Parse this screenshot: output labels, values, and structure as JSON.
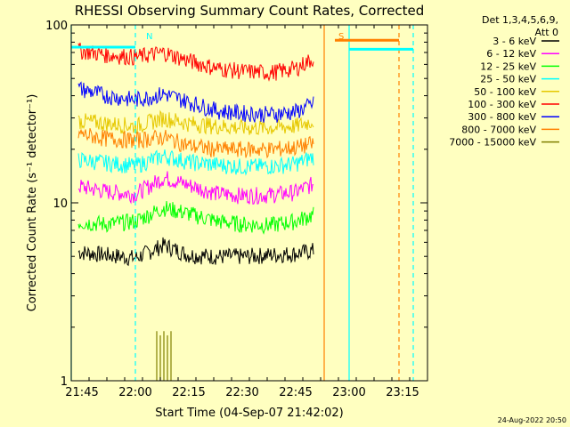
{
  "chart_data": {
    "type": "line",
    "title": "RHESSI Observing Summary Count Rates, Corrected",
    "xlabel": "Start Time (04-Sep-07 21:42:02)",
    "ylabel": "Corrected Count Rate (s⁻¹ detector⁻¹)",
    "y_scale": "log",
    "ylim": [
      1,
      100
    ],
    "xlim": [
      "21:42",
      "23:22"
    ],
    "x_ticks": [
      "21:45",
      "22:00",
      "22:15",
      "22:30",
      "22:45",
      "23:00",
      "23:15"
    ],
    "y_ticks": [
      "1",
      "10",
      "100"
    ],
    "legend_title": [
      "Det 1,3,4,5,6,9,",
      "Att 0"
    ],
    "legend_position": "right",
    "timestamp": "24-Aug-2022 20:50",
    "series": [
      {
        "name": "3 - 6 keV",
        "color": "#000000",
        "x": [
          "21:44",
          "21:52",
          "22:00",
          "22:08",
          "22:15",
          "22:23",
          "22:30",
          "22:38",
          "22:45",
          "22:50"
        ],
        "values": [
          5.3,
          5.1,
          4.9,
          5.8,
          5.1,
          5.0,
          5.0,
          5.1,
          5.2,
          5.4
        ]
      },
      {
        "name": "6 - 12 keV",
        "color": "#ff00ff",
        "x": [
          "21:44",
          "21:52",
          "22:00",
          "22:08",
          "22:15",
          "22:23",
          "22:30",
          "22:38",
          "22:45",
          "22:50"
        ],
        "values": [
          12.4,
          11.6,
          11.2,
          13.9,
          12.6,
          11.3,
          11.0,
          11.1,
          11.5,
          12.8
        ]
      },
      {
        "name": "12 - 25 keV",
        "color": "#00ff00",
        "x": [
          "21:44",
          "21:52",
          "22:00",
          "22:08",
          "22:15",
          "22:23",
          "22:30",
          "22:38",
          "22:45",
          "22:50"
        ],
        "values": [
          7.8,
          7.6,
          7.9,
          9.4,
          8.7,
          7.9,
          7.6,
          7.5,
          7.9,
          8.6
        ]
      },
      {
        "name": "25 - 50 keV",
        "color": "#00ffff",
        "x": [
          "21:44",
          "21:52",
          "22:00",
          "22:08",
          "22:15",
          "22:23",
          "22:30",
          "22:38",
          "22:45",
          "22:50"
        ],
        "values": [
          17.5,
          16.8,
          16.2,
          18.4,
          17.0,
          16.4,
          16.0,
          16.1,
          16.6,
          18.2
        ]
      },
      {
        "name": "50 - 100 keV",
        "color": "#e6c800",
        "x": [
          "21:44",
          "21:52",
          "22:00",
          "22:08",
          "22:15",
          "22:23",
          "22:30",
          "22:38",
          "22:45",
          "22:50"
        ],
        "values": [
          29,
          28,
          27,
          30,
          28,
          27,
          26.5,
          26.5,
          27,
          29
        ]
      },
      {
        "name": "100 - 300 keV",
        "color": "#ff0000",
        "x": [
          "21:44",
          "21:52",
          "22:00",
          "22:08",
          "22:15",
          "22:23",
          "22:30",
          "22:38",
          "22:45",
          "22:50"
        ],
        "values": [
          72,
          68,
          66,
          70,
          63,
          57,
          55,
          54,
          57,
          65
        ]
      },
      {
        "name": "300 - 800 keV",
        "color": "#0000ff",
        "x": [
          "21:44",
          "21:52",
          "22:00",
          "22:08",
          "22:15",
          "22:23",
          "22:30",
          "22:38",
          "22:45",
          "22:50"
        ],
        "values": [
          44,
          40,
          38,
          41,
          37,
          33,
          32,
          31.5,
          32.5,
          36
        ]
      },
      {
        "name": "800 - 7000 keV",
        "color": "#ff8000",
        "x": [
          "21:44",
          "21:52",
          "22:00",
          "22:08",
          "22:15",
          "22:23",
          "22:30",
          "22:38",
          "22:45",
          "22:50"
        ],
        "values": [
          24.5,
          23,
          22.5,
          23.5,
          21,
          20,
          20,
          20,
          20.5,
          21.5
        ]
      },
      {
        "name": "7000 - 15000 keV",
        "color": "#808000",
        "x": [
          "22:06",
          "22:07",
          "22:08",
          "22:09",
          "22:10"
        ],
        "values": [
          1.9,
          1.8,
          1.9,
          1.8,
          1.9
        ]
      }
    ],
    "annotations": [
      {
        "text": "N",
        "color": "#00ffff",
        "x": "22:02"
      },
      {
        "text": "S",
        "color": "#ff8000",
        "x": "22:56"
      }
    ],
    "flags": [
      {
        "color": "#00ffff",
        "x": [
          "21:42",
          "22:00"
        ],
        "value": 75
      },
      {
        "color": "#00ffff",
        "x": [
          "23:00",
          "23:18"
        ],
        "value": 73
      },
      {
        "color": "#ff8000",
        "x": [
          "22:56",
          "23:14"
        ],
        "value": 82
      }
    ],
    "verticals": [
      {
        "color": "#00ffff",
        "x": "21:42",
        "style": "solid"
      },
      {
        "color": "#00ffff",
        "x": "22:00",
        "style": "dashed"
      },
      {
        "color": "#ff8000",
        "x": "22:53",
        "style": "solid"
      },
      {
        "color": "#00ffff",
        "x": "23:00",
        "style": "solid"
      },
      {
        "color": "#ff8000",
        "x": "23:14",
        "style": "dashed"
      },
      {
        "color": "#00ffff",
        "x": "23:18",
        "style": "dashed"
      }
    ]
  }
}
